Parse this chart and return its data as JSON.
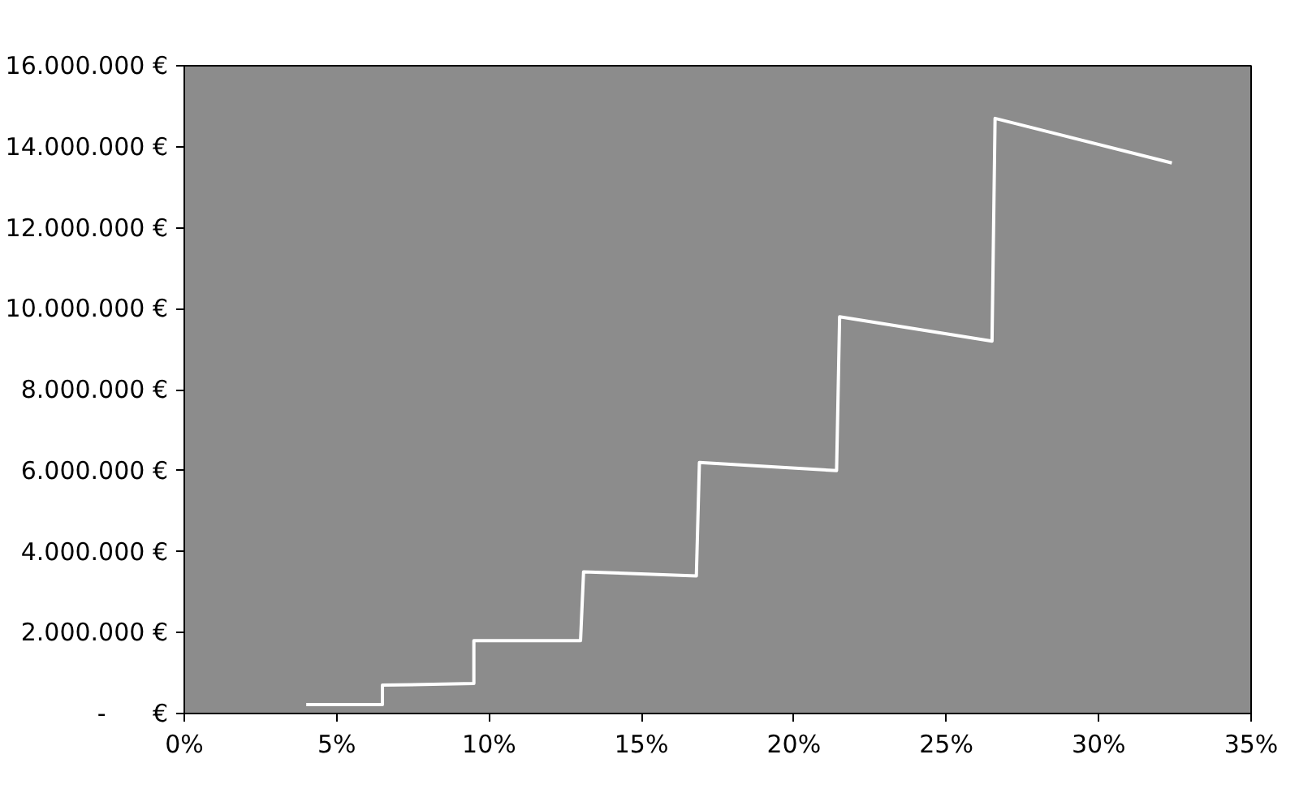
{
  "chart_data": {
    "type": "line",
    "x": [
      4.0,
      6.5,
      6.5,
      9.5,
      9.5,
      13.0,
      13.1,
      16.8,
      16.9,
      21.4,
      21.5,
      26.5,
      26.6,
      32.4
    ],
    "series": [
      {
        "color": "#ffffff",
        "values": [
          220000,
          220000,
          700000,
          740000,
          1800000,
          1800000,
          3500000,
          3400000,
          6200000,
          6000000,
          9800000,
          9200000,
          14700000,
          13600000
        ]
      }
    ],
    "xlim": [
      0,
      35
    ],
    "xticks": [
      {
        "value": 0,
        "label": "0%"
      },
      {
        "value": 5,
        "label": "5%"
      },
      {
        "value": 10,
        "label": "10%"
      },
      {
        "value": 15,
        "label": "15%"
      },
      {
        "value": 20,
        "label": "20%"
      },
      {
        "value": 25,
        "label": "25%"
      },
      {
        "value": 30,
        "label": "30%"
      },
      {
        "value": 35,
        "label": "35%"
      }
    ],
    "ylim": [
      0,
      16000000
    ],
    "yticks": [
      {
        "value": 0,
        "label": "-      €"
      },
      {
        "value": 2000000,
        "label": "2.000.000 €"
      },
      {
        "value": 4000000,
        "label": "4.000.000 €"
      },
      {
        "value": 6000000,
        "label": "6.000.000 €"
      },
      {
        "value": 8000000,
        "label": "8.000.000 €"
      },
      {
        "value": 10000000,
        "label": "10.000.000 €"
      },
      {
        "value": 12000000,
        "label": "12.000.000 €"
      },
      {
        "value": 14000000,
        "label": "14.000.000 €"
      },
      {
        "value": 16000000,
        "label": "16.000.000 €"
      }
    ],
    "grid": false,
    "marker": "none",
    "line_style": "solid"
  }
}
